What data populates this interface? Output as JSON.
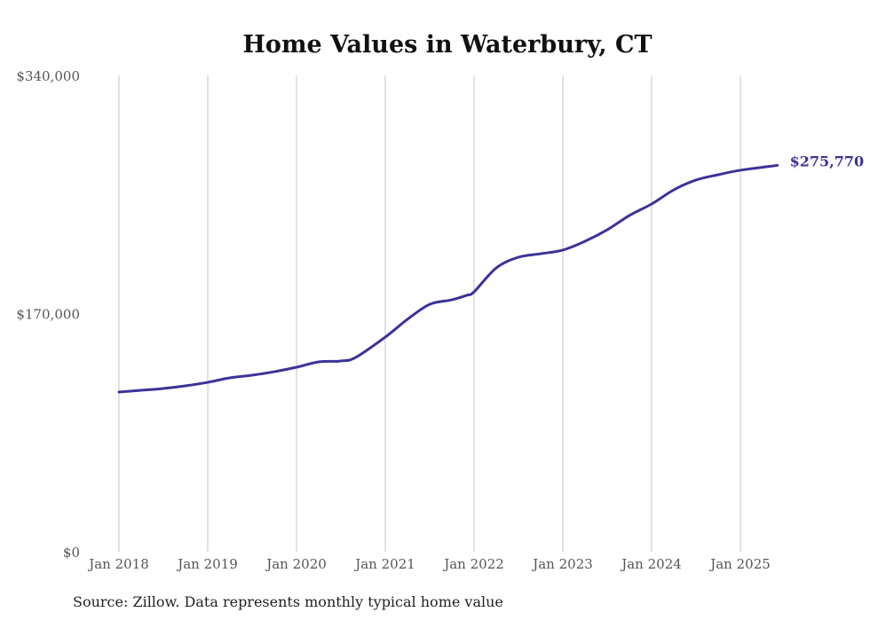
{
  "chart_data": {
    "type": "line",
    "title": "Home Values in Waterbury, CT",
    "xlabel": "",
    "ylabel": "",
    "ylim": [
      0,
      340000
    ],
    "y_ticks": [
      0,
      170000,
      340000
    ],
    "y_tick_labels": [
      "$0",
      "$170,000",
      "$340,000"
    ],
    "x_tick_labels": [
      "Jan 2018",
      "Jan 2019",
      "Jan 2020",
      "Jan 2021",
      "Jan 2022",
      "Jan 2023",
      "Jan 2024",
      "Jan 2025"
    ],
    "x_unit": "months since Jan 2018",
    "grid": "vertical",
    "line_color": "#3b3398",
    "series": [
      {
        "name": "Typical home value",
        "x": [
          0,
          3,
          6,
          9,
          12,
          15,
          18,
          21,
          24,
          27,
          30,
          32,
          36,
          39,
          42,
          45,
          47,
          48,
          51,
          54,
          57,
          60,
          63,
          66,
          69,
          72,
          75,
          78,
          81,
          84,
          89
        ],
        "values": [
          114000,
          115200,
          116500,
          118400,
          120900,
          124100,
          126000,
          128500,
          131700,
          135500,
          136100,
          138700,
          153200,
          165900,
          176600,
          179800,
          183000,
          185500,
          202600,
          210200,
          212700,
          215300,
          221600,
          229800,
          240000,
          248200,
          258300,
          265300,
          269100,
          272300,
          275770
        ]
      }
    ],
    "end_label": "$275,770",
    "source": "Source: Zillow. Data represents monthly typical home value"
  }
}
